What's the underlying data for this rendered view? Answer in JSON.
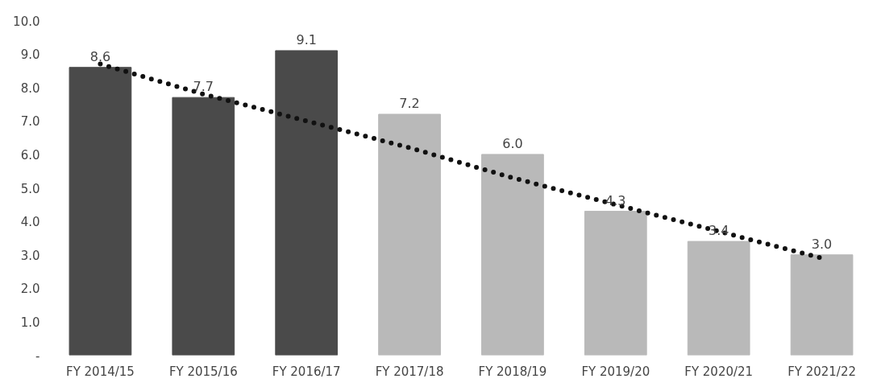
{
  "chart_data": {
    "type": "bar",
    "categories": [
      "FY 2014/15",
      "FY 2015/16",
      "FY 2016/17",
      "FY 2017/18",
      "FY 2018/19",
      "FY 2019/20",
      "FY 2020/21",
      "FY 2021/22"
    ],
    "series": [
      {
        "values": [
          8.6,
          7.7,
          9.1,
          7.2,
          6.0,
          4.3,
          3.4,
          3.0
        ],
        "value_labels": [
          "8.6",
          "7.7",
          "9.1",
          "7.2",
          "6.0",
          "4.3",
          "3.4",
          "3.0"
        ],
        "colors": [
          "#4a4a4a",
          "#4a4a4a",
          "#4a4a4a",
          "#b9b9b9",
          "#b9b9b9",
          "#b9b9b9",
          "#b9b9b9",
          "#b9b9b9"
        ]
      },
      {
        "type": "line",
        "values": [
          8.7,
          7.8,
          7.0,
          6.2,
          5.3,
          4.5,
          3.7,
          2.9
        ],
        "color": "#111111",
        "line_style": "dotted"
      }
    ],
    "ylim": [
      0,
      10
    ],
    "yticks": [
      {
        "value": 0,
        "label": "-"
      },
      {
        "value": 1,
        "label": "1.0"
      },
      {
        "value": 2,
        "label": "2.0"
      },
      {
        "value": 3,
        "label": "3.0"
      },
      {
        "value": 4,
        "label": "4.0"
      },
      {
        "value": 5,
        "label": "5.0"
      },
      {
        "value": 6,
        "label": "6.0"
      },
      {
        "value": 7,
        "label": "7.0"
      },
      {
        "value": 8,
        "label": "8.0"
      },
      {
        "value": 9,
        "label": "9.0"
      },
      {
        "value": 10,
        "label": "10.0"
      }
    ],
    "grid": false
  }
}
